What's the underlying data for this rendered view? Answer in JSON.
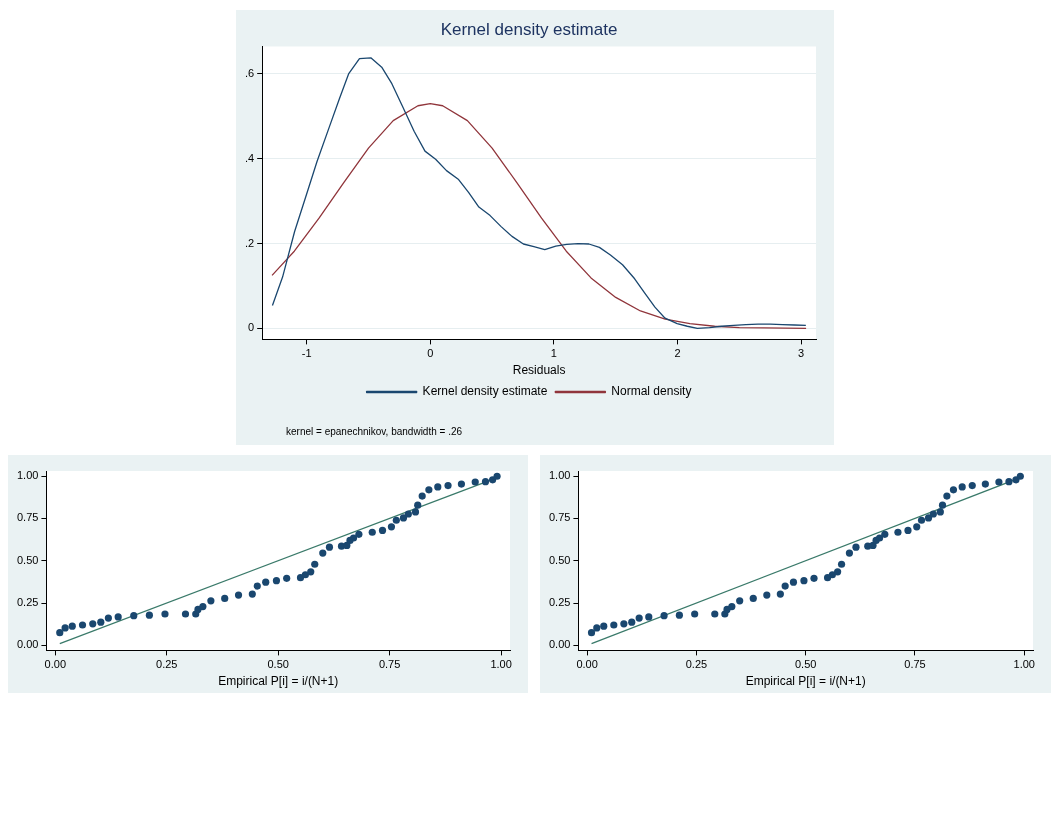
{
  "chart_data": [
    {
      "type": "line",
      "title": "Kernel density estimate",
      "xlabel": "Residuals",
      "xlim": [
        -1.36,
        3.12
      ],
      "xticks": [
        -1,
        0,
        1,
        2,
        3
      ],
      "ylim": [
        -0.026,
        0.665
      ],
      "yticks": [
        {
          "value": 0,
          "label": "0"
        },
        {
          "value": 0.2,
          "label": ".2"
        },
        {
          "value": 0.4,
          "label": ".4"
        },
        {
          "value": 0.6,
          "label": ".6"
        }
      ],
      "grid": "y",
      "legend": "bottom",
      "annotations": [
        "kernel = epanechnikov, bandwidth = .26"
      ],
      "series": [
        {
          "name": "Kernel density estimate",
          "color": "#1a476f",
          "x": [
            -1.277,
            -1.195,
            -1.097,
            -1.008,
            -0.917,
            -0.818,
            -0.736,
            -0.661,
            -0.573,
            -0.481,
            -0.393,
            -0.311,
            -0.229,
            -0.131,
            -0.043,
            0.043,
            0.131,
            0.229,
            0.311,
            0.393,
            0.484,
            0.573,
            0.661,
            0.753,
            0.838,
            0.926,
            1.015,
            1.103,
            1.195,
            1.283,
            1.368,
            1.457,
            1.555,
            1.653,
            1.735,
            1.817,
            1.899,
            1.997,
            2.079,
            2.16,
            2.259,
            2.357,
            2.455,
            2.553,
            2.651,
            2.75,
            2.848,
            2.946,
            3.038
          ],
          "values": [
            0.054,
            0.121,
            0.229,
            0.31,
            0.393,
            0.474,
            0.541,
            0.6,
            0.636,
            0.638,
            0.616,
            0.577,
            0.526,
            0.465,
            0.418,
            0.399,
            0.372,
            0.351,
            0.32,
            0.286,
            0.266,
            0.24,
            0.217,
            0.199,
            0.193,
            0.186,
            0.194,
            0.198,
            0.2,
            0.199,
            0.191,
            0.173,
            0.15,
            0.117,
            0.083,
            0.05,
            0.024,
            0.011,
            0.005,
            0,
            0.002,
            0.005,
            0.007,
            0.009,
            0.01,
            0.01,
            0.009,
            0.008,
            0.007
          ]
        },
        {
          "name": "Normal density",
          "color": "#90353b",
          "x": [
            -1.28,
            -1.1,
            -0.9,
            -0.7,
            -0.5,
            -0.3,
            -0.1,
            0,
            0.1,
            0.3,
            0.5,
            0.7,
            0.9,
            1.1,
            1.3,
            1.5,
            1.7,
            1.9,
            2.1,
            2.3,
            2.5,
            2.7,
            3.04
          ],
          "values": [
            0.125,
            0.182,
            0.26,
            0.344,
            0.425,
            0.49,
            0.525,
            0.53,
            0.525,
            0.49,
            0.425,
            0.344,
            0.26,
            0.182,
            0.119,
            0.073,
            0.041,
            0.022,
            0.011,
            0.005,
            0.002,
            0.001,
            0
          ]
        }
      ]
    },
    {
      "type": "scatter",
      "xlabel": "Empirical P[i] = i/(N+1)",
      "xlim": [
        -0.02,
        1.02
      ],
      "xticks": [
        {
          "value": 0,
          "label": "0.00"
        },
        {
          "value": 0.25,
          "label": "0.25"
        },
        {
          "value": 0.5,
          "label": "0.50"
        },
        {
          "value": 0.75,
          "label": "0.75"
        },
        {
          "value": 1,
          "label": "1.00"
        }
      ],
      "ylim": [
        -0.03,
        1.03
      ],
      "yticks": [
        {
          "value": 0,
          "label": "0.00"
        },
        {
          "value": 0.25,
          "label": "0.25"
        },
        {
          "value": 0.5,
          "label": "0.50"
        },
        {
          "value": 0.75,
          "label": "0.75"
        },
        {
          "value": 1,
          "label": "1.00"
        }
      ],
      "series": [
        {
          "marker": "circle",
          "color": "#1a476f",
          "x": [
            0.01,
            0.022,
            0.038,
            0.061,
            0.084,
            0.102,
            0.119,
            0.141,
            0.176,
            0.211,
            0.246,
            0.292,
            0.315,
            0.32,
            0.331,
            0.349,
            0.38,
            0.411,
            0.442,
            0.453,
            0.472,
            0.496,
            0.519,
            0.55,
            0.561,
            0.573,
            0.582,
            0.6,
            0.615,
            0.642,
            0.654,
            0.661,
            0.669,
            0.681,
            0.711,
            0.734,
            0.754,
            0.765,
            0.781,
            0.792,
            0.808,
            0.813,
            0.823,
            0.838,
            0.858,
            0.881,
            0.911,
            0.942,
            0.965,
            0.981,
            0.991
          ],
          "values": [
            0.075,
            0.103,
            0.113,
            0.12,
            0.127,
            0.137,
            0.161,
            0.168,
            0.175,
            0.178,
            0.185,
            0.185,
            0.185,
            0.212,
            0.229,
            0.263,
            0.277,
            0.297,
            0.303,
            0.35,
            0.373,
            0.382,
            0.396,
            0.4,
            0.417,
            0.434,
            0.479,
            0.545,
            0.58,
            0.586,
            0.59,
            0.62,
            0.634,
            0.656,
            0.668,
            0.679,
            0.7,
            0.739,
            0.753,
            0.776,
            0.788,
            0.828,
            0.882,
            0.919,
            0.936,
            0.944,
            0.953,
            0.965,
            0.967,
            0.978,
            0.999
          ]
        },
        {
          "type": "line",
          "marker": "none",
          "color": "#3a7a6a",
          "x": [
            0.01,
            0.99
          ],
          "values": [
            0.01,
            0.99
          ]
        }
      ]
    },
    {
      "type": "scatter",
      "xlabel": "Empirical P[i] = i/(N+1)",
      "xlim": [
        -0.02,
        1.02
      ],
      "xticks": [
        {
          "value": 0,
          "label": "0.00"
        },
        {
          "value": 0.25,
          "label": "0.25"
        },
        {
          "value": 0.5,
          "label": "0.50"
        },
        {
          "value": 0.75,
          "label": "0.75"
        },
        {
          "value": 1,
          "label": "1.00"
        }
      ],
      "ylim": [
        -0.03,
        1.03
      ],
      "yticks": [
        {
          "value": 0,
          "label": "0.00"
        },
        {
          "value": 0.25,
          "label": "0.25"
        },
        {
          "value": 0.5,
          "label": "0.50"
        },
        {
          "value": 0.75,
          "label": "0.75"
        },
        {
          "value": 1,
          "label": "1.00"
        }
      ],
      "series": [
        {
          "marker": "circle",
          "color": "#1a476f",
          "x": [
            0.01,
            0.022,
            0.038,
            0.061,
            0.084,
            0.102,
            0.119,
            0.141,
            0.176,
            0.211,
            0.246,
            0.292,
            0.315,
            0.32,
            0.331,
            0.349,
            0.38,
            0.411,
            0.442,
            0.453,
            0.472,
            0.496,
            0.519,
            0.55,
            0.561,
            0.573,
            0.582,
            0.6,
            0.615,
            0.642,
            0.654,
            0.661,
            0.669,
            0.681,
            0.711,
            0.734,
            0.754,
            0.765,
            0.781,
            0.792,
            0.808,
            0.813,
            0.823,
            0.838,
            0.858,
            0.881,
            0.911,
            0.942,
            0.965,
            0.981,
            0.991
          ],
          "values": [
            0.075,
            0.103,
            0.113,
            0.12,
            0.127,
            0.137,
            0.161,
            0.168,
            0.175,
            0.178,
            0.185,
            0.185,
            0.185,
            0.212,
            0.229,
            0.263,
            0.277,
            0.297,
            0.303,
            0.35,
            0.373,
            0.382,
            0.396,
            0.4,
            0.417,
            0.434,
            0.479,
            0.545,
            0.58,
            0.586,
            0.59,
            0.62,
            0.634,
            0.656,
            0.668,
            0.679,
            0.7,
            0.739,
            0.753,
            0.776,
            0.788,
            0.828,
            0.882,
            0.919,
            0.936,
            0.944,
            0.953,
            0.965,
            0.967,
            0.978,
            0.999
          ]
        },
        {
          "type": "line",
          "marker": "none",
          "color": "#3a7a6a",
          "x": [
            0.01,
            0.99
          ],
          "values": [
            0.01,
            0.99
          ]
        }
      ]
    }
  ]
}
